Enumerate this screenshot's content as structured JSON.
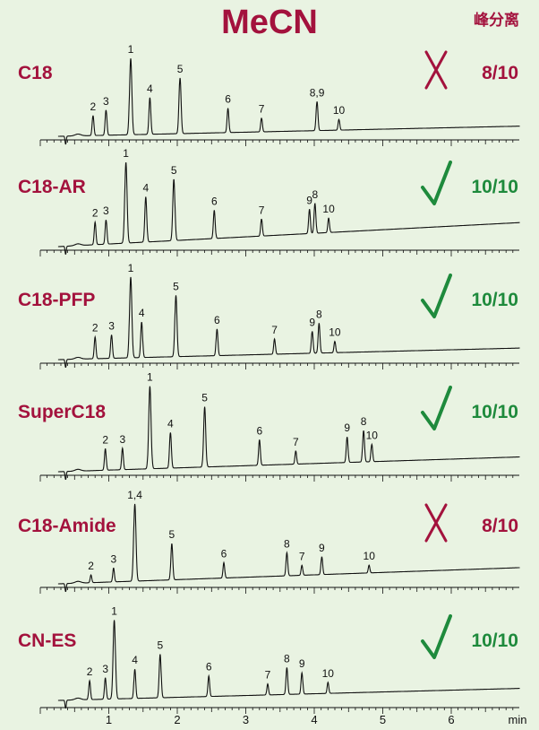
{
  "title": "MeCN",
  "legend_label": "峰分离",
  "colors": {
    "label": "#a3123d",
    "pass": "#1e8a3c",
    "fail": "#a3123d",
    "trace": "#111111",
    "background": "#e9f3e2"
  },
  "chart_data": {
    "type": "line",
    "title": "MeCN",
    "xlabel": "min",
    "xlim": [
      0,
      6.9
    ],
    "x_ticks": [
      "1",
      "2",
      "3",
      "4",
      "5",
      "6"
    ],
    "x_tick_values": [
      1,
      2,
      3,
      4,
      5,
      6
    ],
    "grid": false,
    "panels": [
      {
        "name": "C18",
        "result": "8/10",
        "pass": false,
        "result_icon": "cross-icon",
        "peaks": [
          {
            "label": "2",
            "rt": 0.77,
            "height": 0.26
          },
          {
            "label": "3",
            "rt": 0.96,
            "height": 0.33
          },
          {
            "label": "1",
            "rt": 1.32,
            "height": 1.0
          },
          {
            "label": "4",
            "rt": 1.6,
            "height": 0.48
          },
          {
            "label": "5",
            "rt": 2.04,
            "height": 0.73
          },
          {
            "label": "6",
            "rt": 2.74,
            "height": 0.32
          },
          {
            "label": "7",
            "rt": 3.23,
            "height": 0.18
          },
          {
            "label": "8,9",
            "rt": 4.04,
            "height": 0.38
          },
          {
            "label": "10",
            "rt": 4.36,
            "height": 0.14
          }
        ]
      },
      {
        "name": "C18-AR",
        "result": "10/10",
        "pass": true,
        "result_icon": "check-icon",
        "peaks": [
          {
            "label": "2",
            "rt": 0.8,
            "height": 0.28
          },
          {
            "label": "3",
            "rt": 0.96,
            "height": 0.3
          },
          {
            "label": "1",
            "rt": 1.25,
            "height": 1.0
          },
          {
            "label": "4",
            "rt": 1.54,
            "height": 0.56
          },
          {
            "label": "5",
            "rt": 1.95,
            "height": 0.76
          },
          {
            "label": "6",
            "rt": 2.54,
            "height": 0.35
          },
          {
            "label": "7",
            "rt": 3.23,
            "height": 0.21
          },
          {
            "label": "9",
            "rt": 3.93,
            "height": 0.3
          },
          {
            "label": "8",
            "rt": 4.01,
            "height": 0.37
          },
          {
            "label": "10",
            "rt": 4.21,
            "height": 0.18
          }
        ]
      },
      {
        "name": "C18-PFP",
        "result": "10/10",
        "pass": true,
        "result_icon": "check-icon",
        "peaks": [
          {
            "label": "2",
            "rt": 0.8,
            "height": 0.27
          },
          {
            "label": "3",
            "rt": 1.04,
            "height": 0.29
          },
          {
            "label": "1",
            "rt": 1.32,
            "height": 1.0
          },
          {
            "label": "4",
            "rt": 1.48,
            "height": 0.44
          },
          {
            "label": "5",
            "rt": 1.98,
            "height": 0.76
          },
          {
            "label": "6",
            "rt": 2.58,
            "height": 0.33
          },
          {
            "label": "7",
            "rt": 3.42,
            "height": 0.19
          },
          {
            "label": "9",
            "rt": 3.97,
            "height": 0.27
          },
          {
            "label": "8",
            "rt": 4.07,
            "height": 0.37
          },
          {
            "label": "10",
            "rt": 4.3,
            "height": 0.14
          }
        ]
      },
      {
        "name": "SuperC18",
        "result": "10/10",
        "pass": true,
        "result_icon": "check-icon",
        "peaks": [
          {
            "label": "2",
            "rt": 0.95,
            "height": 0.26
          },
          {
            "label": "3",
            "rt": 1.2,
            "height": 0.26
          },
          {
            "label": "1",
            "rt": 1.6,
            "height": 1.0
          },
          {
            "label": "4",
            "rt": 1.9,
            "height": 0.43
          },
          {
            "label": "5",
            "rt": 2.4,
            "height": 0.73
          },
          {
            "label": "6",
            "rt": 3.2,
            "height": 0.31
          },
          {
            "label": "7",
            "rt": 3.73,
            "height": 0.16
          },
          {
            "label": "9",
            "rt": 4.48,
            "height": 0.31
          },
          {
            "label": "8",
            "rt": 4.72,
            "height": 0.38
          },
          {
            "label": "10",
            "rt": 4.84,
            "height": 0.21
          }
        ]
      },
      {
        "name": "C18-Amide",
        "result": "8/10",
        "pass": false,
        "result_icon": "cross-icon",
        "peaks": [
          {
            "label": "2",
            "rt": 0.74,
            "height": 0.1
          },
          {
            "label": "3",
            "rt": 1.07,
            "height": 0.18
          },
          {
            "label": "1,4",
            "rt": 1.38,
            "height": 1.0
          },
          {
            "label": "5",
            "rt": 1.92,
            "height": 0.47
          },
          {
            "label": "6",
            "rt": 2.68,
            "height": 0.2
          },
          {
            "label": "8",
            "rt": 3.6,
            "height": 0.3
          },
          {
            "label": "7",
            "rt": 3.82,
            "height": 0.13
          },
          {
            "label": "9",
            "rt": 4.11,
            "height": 0.23
          },
          {
            "label": "10",
            "rt": 4.8,
            "height": 0.1
          }
        ]
      },
      {
        "name": "CN-ES",
        "result": "10/10",
        "pass": true,
        "result_icon": "check-icon",
        "peaks": [
          {
            "label": "2",
            "rt": 0.72,
            "height": 0.24
          },
          {
            "label": "3",
            "rt": 0.95,
            "height": 0.27
          },
          {
            "label": "1",
            "rt": 1.08,
            "height": 1.0
          },
          {
            "label": "4",
            "rt": 1.38,
            "height": 0.37
          },
          {
            "label": "5",
            "rt": 1.75,
            "height": 0.55
          },
          {
            "label": "6",
            "rt": 2.46,
            "height": 0.26
          },
          {
            "label": "7",
            "rt": 3.32,
            "height": 0.14
          },
          {
            "label": "8",
            "rt": 3.6,
            "height": 0.34
          },
          {
            "label": "9",
            "rt": 3.82,
            "height": 0.27
          },
          {
            "label": "10",
            "rt": 4.2,
            "height": 0.14
          }
        ]
      }
    ]
  }
}
